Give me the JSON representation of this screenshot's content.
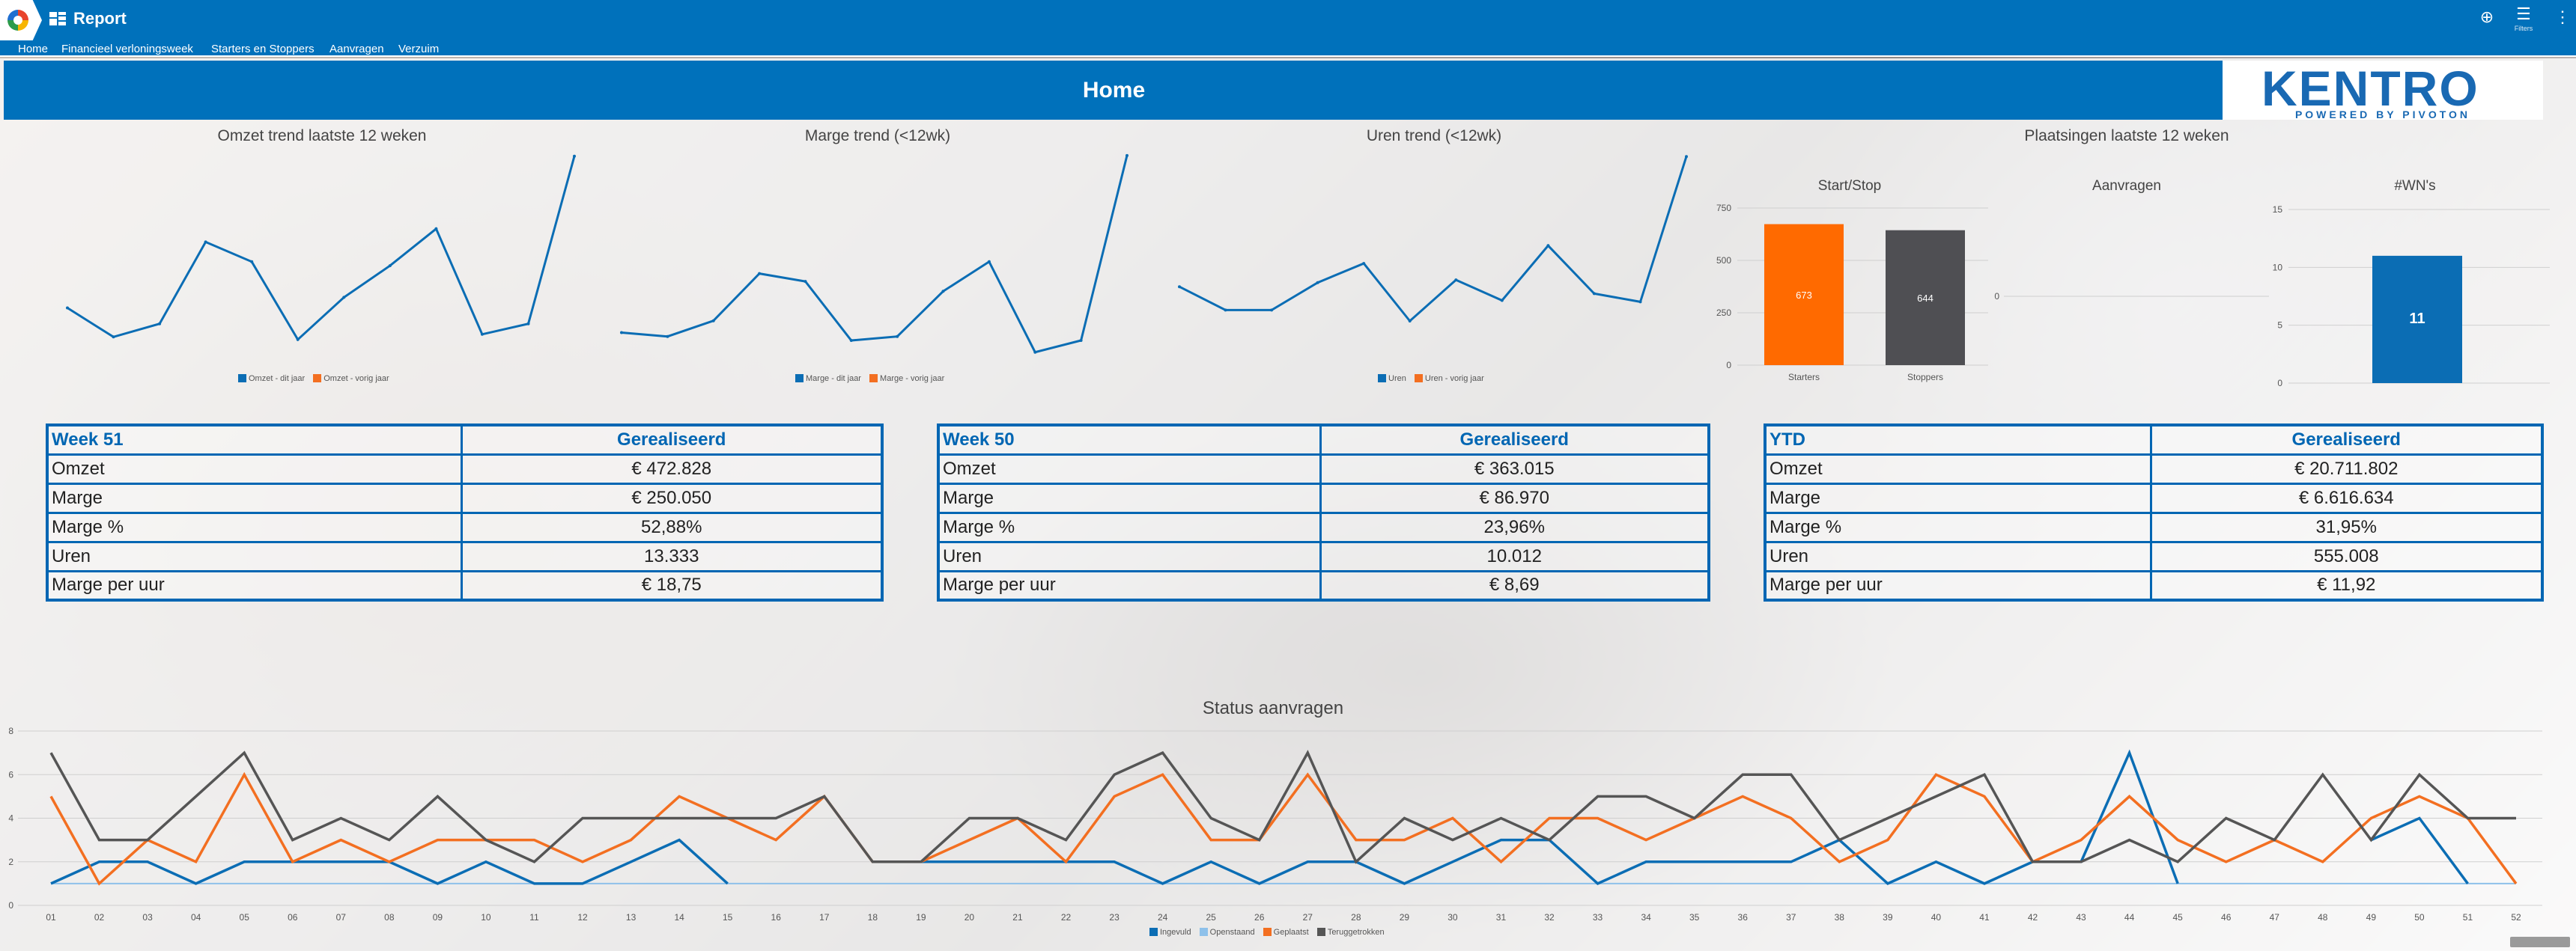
{
  "app": {
    "title": "Report",
    "filters_label": "Filters"
  },
  "tabs": [
    {
      "label": "Home"
    },
    {
      "label": "Financieel verloningsweek"
    },
    {
      "label": "Starters en Stoppers"
    },
    {
      "label": "Aanvragen"
    },
    {
      "label": "Verzuim"
    }
  ],
  "header": {
    "title": "Home",
    "logo_text": "KENTRO",
    "logo_sub": "POWERED BY PIVOTON",
    "band_color": "#0071bb"
  },
  "charts": {
    "omzet": {
      "title": "Omzet trend laatste 12 weken",
      "legend": [
        "Omzet - dit jaar",
        "Omzet - vorig jaar"
      ],
      "values": [
        40,
        18,
        28,
        90,
        75,
        16,
        48,
        72,
        100,
        20,
        28,
        155
      ]
    },
    "marge": {
      "title": "Marge trend (<12wk)",
      "legend": [
        "Marge - dit jaar",
        "Marge - vorig jaar"
      ],
      "values": [
        12,
        10,
        18,
        42,
        38,
        8,
        10,
        33,
        48,
        2,
        8,
        102
      ]
    },
    "uren": {
      "title": "Uren trend (<12wk)",
      "legend": [
        "Uren",
        "Uren - vorig jaar"
      ],
      "values": [
        55,
        38,
        38,
        58,
        72,
        30,
        60,
        45,
        85,
        50,
        44,
        150
      ]
    },
    "plaatsingen": {
      "title": "Plaatsingen laatste 12 weken"
    },
    "startstop": {
      "title": "Start/Stop",
      "categories": [
        "Starters",
        "Stoppers"
      ],
      "values": [
        673,
        644
      ],
      "ticks": [
        "0",
        "250",
        "500",
        "750"
      ]
    },
    "aanvragen": {
      "title": "Aanvragen",
      "ticks": [
        "0"
      ]
    },
    "wns": {
      "title": "#WN's",
      "values": [
        11
      ],
      "ticks": [
        "0",
        "5",
        "10",
        "15"
      ]
    }
  },
  "tables": [
    {
      "header": "Week 51",
      "col": "Gerealiseerd",
      "rows": [
        {
          "label": "Omzet",
          "value": "€ 472.828"
        },
        {
          "label": "Marge",
          "value": "€ 250.050"
        },
        {
          "label": "Marge %",
          "value": "52,88%"
        },
        {
          "label": "Uren",
          "value": "13.333"
        },
        {
          "label": "Marge per uur",
          "value": "€ 18,75"
        }
      ]
    },
    {
      "header": "Week 50",
      "col": "Gerealiseerd",
      "rows": [
        {
          "label": "Omzet",
          "value": "€ 363.015"
        },
        {
          "label": "Marge",
          "value": "€ 86.970"
        },
        {
          "label": "Marge %",
          "value": "23,96%"
        },
        {
          "label": "Uren",
          "value": "10.012"
        },
        {
          "label": "Marge per uur",
          "value": "€ 8,69"
        }
      ]
    },
    {
      "header": "YTD",
      "col": "Gerealiseerd",
      "rows": [
        {
          "label": "Omzet",
          "value": "€ 20.711.802"
        },
        {
          "label": "Marge",
          "value": "€ 6.616.634"
        },
        {
          "label": "Marge %",
          "value": "31,95%"
        },
        {
          "label": "Uren",
          "value": "555.008"
        },
        {
          "label": "Marge per uur",
          "value": "€ 11,92"
        }
      ]
    }
  ],
  "status": {
    "title": "Status aanvragen",
    "ticks": [
      "0",
      "2",
      "4",
      "6",
      "8"
    ],
    "legend": [
      "Ingevuld",
      "Openstaand",
      "Geplaatst",
      "Teruggetrokken"
    ]
  },
  "chart_data": [
    {
      "type": "line",
      "title": "Omzet trend laatste 12 weken",
      "series": [
        {
          "name": "Omzet - dit jaar",
          "values": [
            40,
            18,
            28,
            90,
            75,
            16,
            48,
            72,
            100,
            20,
            28,
            155
          ]
        }
      ]
    },
    {
      "type": "line",
      "title": "Marge trend (<12wk)",
      "series": [
        {
          "name": "Marge - dit jaar",
          "values": [
            12,
            10,
            18,
            42,
            38,
            8,
            10,
            33,
            48,
            2,
            8,
            102
          ]
        }
      ]
    },
    {
      "type": "line",
      "title": "Uren trend (<12wk)",
      "series": [
        {
          "name": "Uren",
          "values": [
            55,
            38,
            38,
            58,
            72,
            30,
            60,
            45,
            85,
            50,
            44,
            150
          ]
        }
      ]
    },
    {
      "type": "bar",
      "title": "Start/Stop",
      "categories": [
        "Starters",
        "Stoppers"
      ],
      "values": [
        673,
        644
      ],
      "ylim": [
        0,
        750
      ]
    },
    {
      "type": "bar",
      "title": "#WN's",
      "categories": [
        ""
      ],
      "values": [
        11
      ],
      "ylim": [
        0,
        15
      ]
    },
    {
      "type": "line",
      "title": "Status aanvragen",
      "x": [
        "01",
        "02",
        "03",
        "04",
        "05",
        "06",
        "07",
        "08",
        "09",
        "10",
        "11",
        "12",
        "13",
        "14",
        "15",
        "16",
        "17",
        "18",
        "19",
        "20",
        "21",
        "22",
        "23",
        "24",
        "25",
        "26",
        "27",
        "28",
        "29",
        "30",
        "31",
        "32",
        "33",
        "34",
        "35",
        "36",
        "37",
        "38",
        "39",
        "40",
        "41",
        "42",
        "43",
        "44",
        "45",
        "46",
        "47",
        "48",
        "49",
        "50",
        "51",
        "52"
      ],
      "ylim": [
        0,
        8
      ],
      "series": [
        {
          "name": "Ingevuld",
          "color": "#0b6db4",
          "values": [
            1,
            2,
            2,
            1,
            2,
            2,
            2,
            2,
            1,
            2,
            1,
            1,
            2,
            3,
            1,
            null,
            null,
            null,
            2,
            2,
            2,
            2,
            2,
            1,
            2,
            1,
            2,
            2,
            1,
            2,
            3,
            3,
            1,
            2,
            2,
            2,
            2,
            3,
            1,
            2,
            1,
            2,
            2,
            7,
            1,
            null,
            null,
            null,
            3,
            4,
            1,
            null
          ]
        },
        {
          "name": "Openstaand",
          "color": "#8ec1ea",
          "values": [
            1,
            1,
            1,
            1,
            1,
            1,
            1,
            1,
            1,
            1,
            1,
            1,
            1,
            1,
            1,
            1,
            1,
            1,
            1,
            1,
            1,
            1,
            1,
            1,
            1,
            1,
            1,
            1,
            1,
            1,
            1,
            1,
            1,
            1,
            1,
            1,
            1,
            1,
            1,
            1,
            1,
            1,
            1,
            1,
            1,
            1,
            1,
            1,
            1,
            1,
            1,
            1
          ]
        },
        {
          "name": "Geplaatst",
          "color": "#f36f21",
          "values": [
            5,
            1,
            3,
            2,
            6,
            2,
            3,
            2,
            3,
            3,
            3,
            2,
            3,
            5,
            4,
            3,
            5,
            2,
            2,
            3,
            4,
            2,
            5,
            6,
            3,
            3,
            6,
            3,
            3,
            4,
            2,
            4,
            4,
            3,
            4,
            5,
            4,
            2,
            3,
            6,
            5,
            2,
            3,
            5,
            3,
            2,
            3,
            2,
            4,
            5,
            4,
            1
          ]
        },
        {
          "name": "Teruggetrokken",
          "color": "#555555",
          "values": [
            7,
            3,
            3,
            5,
            7,
            3,
            4,
            3,
            5,
            3,
            2,
            4,
            4,
            4,
            4,
            4,
            5,
            2,
            2,
            4,
            4,
            3,
            6,
            7,
            4,
            3,
            7,
            2,
            4,
            3,
            4,
            3,
            5,
            5,
            4,
            6,
            6,
            3,
            4,
            5,
            6,
            2,
            2,
            3,
            2,
            4,
            3,
            6,
            3,
            6,
            4,
            4
          ]
        }
      ]
    }
  ]
}
